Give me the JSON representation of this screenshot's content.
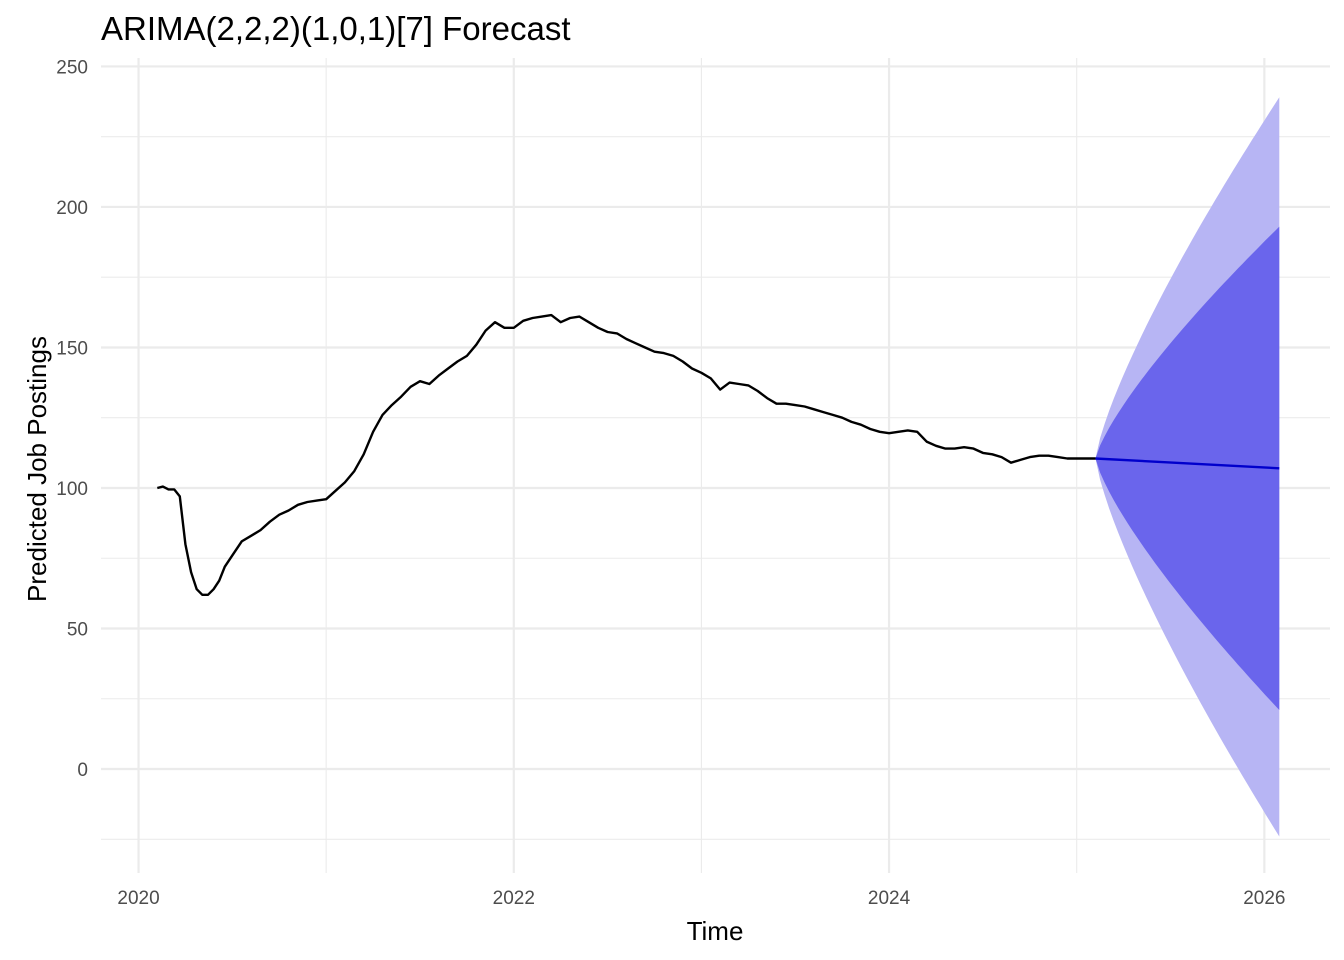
{
  "chart_data": {
    "type": "line",
    "title": "ARIMA(2,2,2)(1,0,1)[7] Forecast",
    "xlabel": "Time",
    "ylabel": "Predicted Job Postings",
    "xlim": [
      2019.8,
      2026.35
    ],
    "ylim": [
      -37,
      253
    ],
    "x_ticks": [
      2020,
      2022,
      2024,
      2026
    ],
    "y_ticks": [
      0,
      50,
      100,
      150,
      200,
      250
    ],
    "grid": true,
    "legend": "none",
    "colors": {
      "history": "#000000",
      "forecast": "#0000cc",
      "band_80": "#6a65ec",
      "band_95": "#b7b5f4",
      "grid": "#ebebeb"
    },
    "series": [
      {
        "role": "history",
        "x": [
          2020.1,
          2020.13,
          2020.16,
          2020.19,
          2020.22,
          2020.25,
          2020.28,
          2020.31,
          2020.34,
          2020.37,
          2020.4,
          2020.43,
          2020.46,
          2020.5,
          2020.55,
          2020.6,
          2020.65,
          2020.7,
          2020.75,
          2020.8,
          2020.85,
          2020.9,
          2020.95,
          2021.0,
          2021.05,
          2021.1,
          2021.15,
          2021.2,
          2021.25,
          2021.3,
          2021.35,
          2021.4,
          2021.45,
          2021.5,
          2021.55,
          2021.6,
          2021.65,
          2021.7,
          2021.75,
          2021.8,
          2021.85,
          2021.9,
          2021.95,
          2022.0,
          2022.05,
          2022.1,
          2022.15,
          2022.2,
          2022.25,
          2022.3,
          2022.35,
          2022.4,
          2022.45,
          2022.5,
          2022.55,
          2022.6,
          2022.65,
          2022.7,
          2022.75,
          2022.8,
          2022.85,
          2022.9,
          2022.95,
          2023.0,
          2023.05,
          2023.1,
          2023.15,
          2023.2,
          2023.25,
          2023.3,
          2023.35,
          2023.4,
          2023.45,
          2023.5,
          2023.55,
          2023.6,
          2023.65,
          2023.7,
          2023.75,
          2023.8,
          2023.85,
          2023.9,
          2023.95,
          2024.0,
          2024.05,
          2024.1,
          2024.15,
          2024.2,
          2024.25,
          2024.3,
          2024.35,
          2024.4,
          2024.45,
          2024.5,
          2024.55,
          2024.6,
          2024.65,
          2024.7,
          2024.75,
          2024.8,
          2024.85,
          2024.9,
          2024.95,
          2025.0,
          2025.05,
          2025.1
        ],
        "y": [
          100,
          100.5,
          99.5,
          99.5,
          97,
          80,
          70,
          64,
          62,
          62,
          64,
          67,
          72,
          76,
          81,
          83,
          85,
          88,
          90.5,
          92,
          94,
          95,
          95.5,
          96,
          99,
          102,
          106,
          112,
          120,
          126,
          129.5,
          132.5,
          136,
          138,
          137,
          140,
          142.5,
          145,
          147,
          151,
          156,
          159,
          157,
          157,
          159.5,
          160.5,
          161,
          161.5,
          159,
          160.5,
          161,
          159,
          157,
          155.5,
          155,
          153,
          151.5,
          150,
          148.5,
          148,
          147,
          145,
          142.5,
          141,
          139,
          135,
          137.5,
          137,
          136.5,
          134.5,
          132,
          130,
          130,
          129.5,
          129,
          128,
          127,
          126,
          125,
          123.5,
          122.5,
          121,
          120,
          119.5,
          120,
          120.5,
          120,
          116.5,
          115,
          114,
          114,
          114.5,
          114,
          112.5,
          112,
          111,
          109,
          110,
          111,
          111.5,
          111.5,
          111,
          110.5,
          110.5,
          110.5,
          110.5
        ]
      },
      {
        "role": "forecast",
        "x": [
          2025.1,
          2026.08
        ],
        "y": [
          110.5,
          107
        ],
        "lo80": [
          110.5,
          21
        ],
        "hi80": [
          110.5,
          193
        ],
        "lo95": [
          110.5,
          -24
        ],
        "hi95": [
          110.5,
          239
        ]
      }
    ]
  }
}
